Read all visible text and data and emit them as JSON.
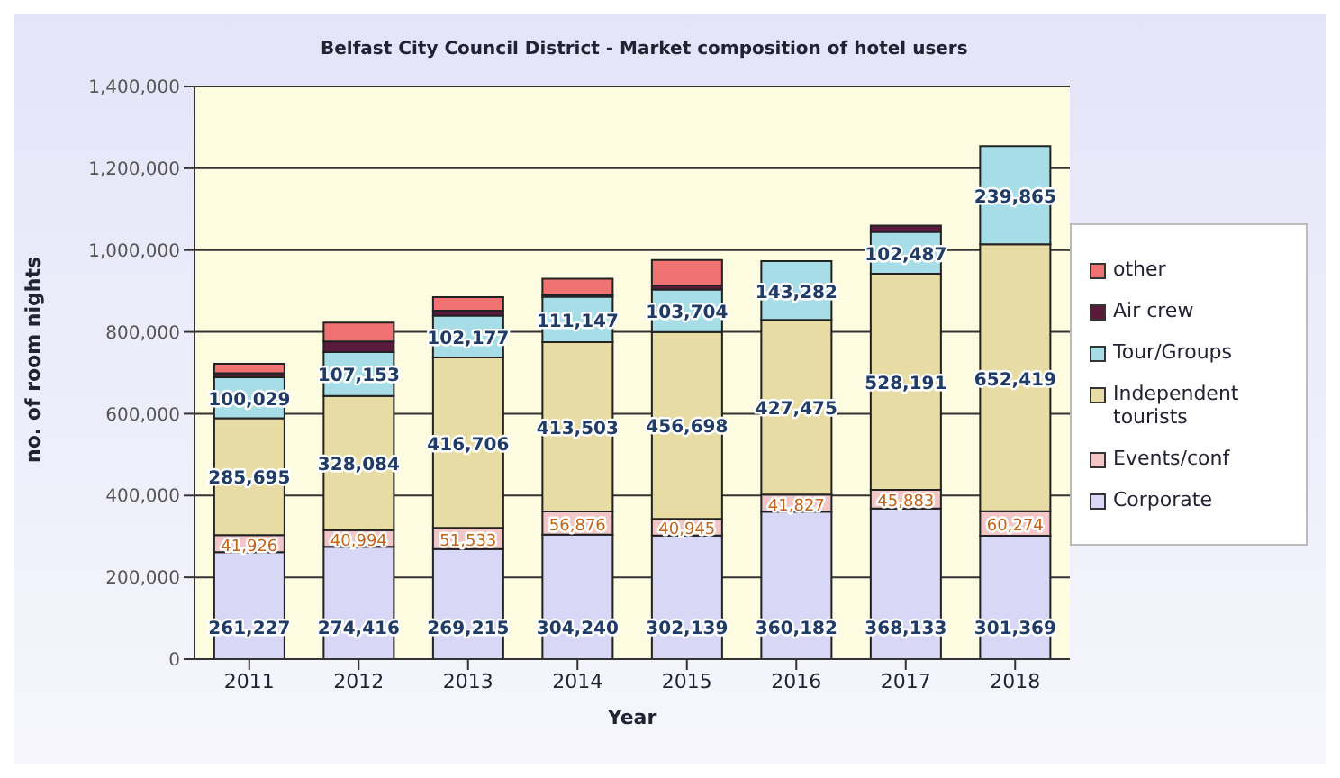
{
  "chart_data": {
    "type": "bar",
    "title": "Belfast City Council District - Market composition of hotel users",
    "xlabel": "Year",
    "ylabel": "no. of room nights",
    "categories": [
      "2011",
      "2012",
      "2013",
      "2014",
      "2015",
      "2016",
      "2017",
      "2018"
    ],
    "stacked": true,
    "ylim": [
      0,
      1400000
    ],
    "yticks": [
      {
        "value": 0,
        "label": "0"
      },
      {
        "value": 200000,
        "label": "200,000"
      },
      {
        "value": 400000,
        "label": "400,000"
      },
      {
        "value": 600000,
        "label": "600,000"
      },
      {
        "value": 800000,
        "label": "800,000"
      },
      {
        "value": 1000000,
        "label": "1,000,000"
      },
      {
        "value": 1200000,
        "label": "1,200,000"
      },
      {
        "value": 1400000,
        "label": "1,400,000"
      }
    ],
    "grid": "y",
    "legend": "right",
    "series": [
      {
        "name": "Corporate",
        "color": "#d8d8f6",
        "values": [
          261227,
          274416,
          269215,
          304240,
          302139,
          360182,
          368133,
          301369
        ],
        "value_labels": [
          "261,227",
          "274,416",
          "269,215",
          "304,240",
          "302,139",
          "360,182",
          "368,133",
          "301,369"
        ]
      },
      {
        "name": "Events/conf",
        "color": "#f2c6c6",
        "values": [
          41926,
          40994,
          51533,
          56876,
          40945,
          41827,
          45883,
          60274
        ],
        "value_labels": [
          "41,926",
          "40,994",
          "51,533",
          "56,876",
          "40,945",
          "41,827",
          "45,883",
          "60,274"
        ]
      },
      {
        "name": "Independent tourists",
        "color": "#e6dca4",
        "values": [
          285695,
          328084,
          416706,
          413503,
          456698,
          427475,
          528191,
          652419
        ],
        "value_labels": [
          "285,695",
          "328,084",
          "416,706",
          "413,503",
          "456,698",
          "427,475",
          "528,191",
          "652,419"
        ]
      },
      {
        "name": "Tour/Groups",
        "color": "#a6dde6",
        "values": [
          100029,
          107153,
          102177,
          111147,
          103704,
          143282,
          102487,
          239865
        ],
        "value_labels": [
          "100,029",
          "107,153",
          "102,177",
          "111,147",
          "103,704",
          "143,282",
          "102,487",
          "239,865"
        ]
      },
      {
        "name": "Air crew",
        "color": "#5a1a3c",
        "values": [
          10000,
          26000,
          12000,
          5000,
          10000,
          0,
          15000,
          0
        ]
      },
      {
        "name": "other",
        "color": "#f07272",
        "values": [
          23000,
          46000,
          33000,
          39000,
          62000,
          0,
          0,
          0
        ]
      }
    ]
  }
}
